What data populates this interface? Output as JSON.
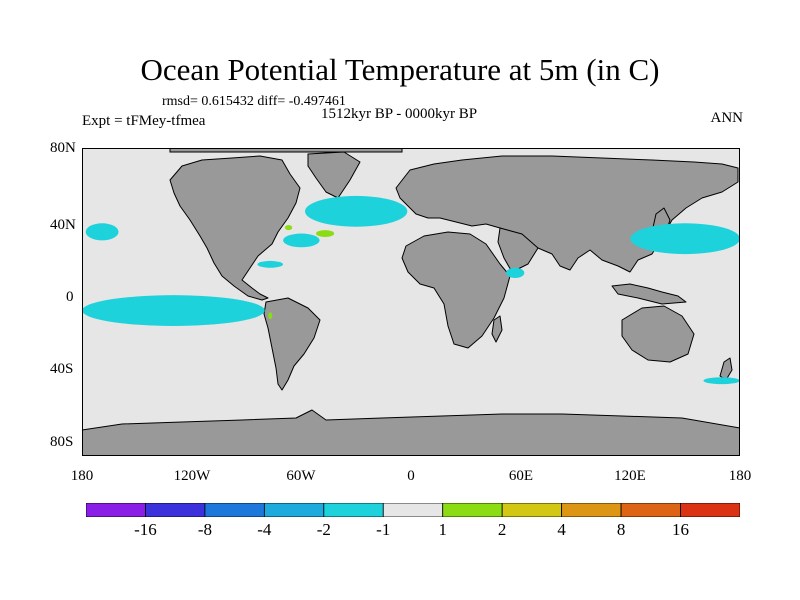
{
  "figure": {
    "title": "Ocean Potential Temperature at 5m (in C)",
    "stats": "rmsd= 0.615432 diff= -0.497461",
    "experiment": "Expt = tFMey-tfmea",
    "period": "1512kyr BP - 0000kyr BP",
    "season": "ANN"
  },
  "chart_data": {
    "type": "heatmap",
    "title": "Ocean Potential Temperature at 5m (in C)",
    "projection": "cylindrical equidistant",
    "lon_range": [
      -180,
      180
    ],
    "lat_range": [
      -90,
      90
    ],
    "x_tick_labels": [
      "180",
      "120W",
      "60W",
      "0",
      "60E",
      "120E",
      "180"
    ],
    "y_tick_labels": [
      "80N",
      "40N",
      "0",
      "40S",
      "80S"
    ],
    "colorbar": {
      "levels": [
        "-16",
        "-8",
        "-4",
        "-2",
        "-1",
        "1",
        "2",
        "4",
        "8",
        "16"
      ],
      "colors": [
        "#8a1ee6",
        "#3c32dc",
        "#1e78dc",
        "#1eaadc",
        "#1ed2dc",
        "#e6e6e6",
        "#8cdc14",
        "#d2c814",
        "#dc9614",
        "#dc6414",
        "#dc3214"
      ]
    },
    "land_color": "#999999",
    "ocean_background_color": "#e6e6e6",
    "anomaly_regions": [
      {
        "name": "North Pacific mid-latitude",
        "value_bin": "-2 to -1",
        "lon": [
          -178,
          -160
        ],
        "lat": [
          36,
          46
        ]
      },
      {
        "name": "Eastern equatorial Pacific",
        "value_bin": "-2 to -1",
        "lon": [
          -180,
          -80
        ],
        "lat": [
          -14,
          4
        ]
      },
      {
        "name": "North Atlantic subpolar",
        "value_bin": "-2 to -1",
        "lon": [
          -58,
          -2
        ],
        "lat": [
          44,
          62
        ]
      },
      {
        "name": "North Atlantic Gulf Stream",
        "value_bin": "-2 to -1",
        "lon": [
          -70,
          -50
        ],
        "lat": [
          32,
          40
        ]
      },
      {
        "name": "Caribbean",
        "value_bin": "-2 to -1",
        "lon": [
          -84,
          -70
        ],
        "lat": [
          20,
          24
        ]
      },
      {
        "name": "Arabian Sea",
        "value_bin": "-2 to -1",
        "lon": [
          52,
          62
        ],
        "lat": [
          14,
          20
        ]
      },
      {
        "name": "Northwest Pacific",
        "value_bin": "-2 to -1",
        "lon": [
          120,
          180
        ],
        "lat": [
          28,
          46
        ]
      },
      {
        "name": "Southern Ocean east of 160E",
        "value_bin": "-2 to -1",
        "lon": [
          160,
          180
        ],
        "lat": [
          -48,
          -44
        ]
      },
      {
        "name": "North Atlantic central",
        "value_bin": "1 to 2",
        "lon": [
          -52,
          -42
        ],
        "lat": [
          38,
          42
        ]
      },
      {
        "name": "Gulf of Maine",
        "value_bin": "1 to 2",
        "lon": [
          -69,
          -65
        ],
        "lat": [
          42,
          45
        ]
      },
      {
        "name": "South American coast",
        "value_bin": "1 to 2",
        "lon": [
          -78,
          -76
        ],
        "lat": [
          -10,
          -6
        ]
      }
    ]
  }
}
